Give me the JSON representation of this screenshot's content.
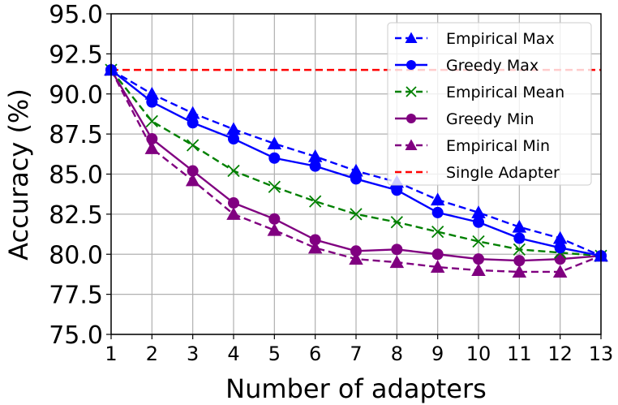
{
  "chart_data": {
    "type": "line",
    "title": "",
    "xlabel": "Number of adapters",
    "ylabel": "Accuracy (%)",
    "x": [
      1,
      2,
      3,
      4,
      5,
      6,
      7,
      8,
      9,
      10,
      11,
      12,
      13
    ],
    "xlim": [
      1,
      13
    ],
    "ylim": [
      75.0,
      95.0
    ],
    "xticks": [
      "1",
      "2",
      "3",
      "4",
      "5",
      "6",
      "7",
      "8",
      "9",
      "10",
      "11",
      "12",
      "13"
    ],
    "yticks": [
      "75.0",
      "77.5",
      "80.0",
      "82.5",
      "85.0",
      "87.5",
      "90.0",
      "92.5",
      "95.0"
    ],
    "grid": true,
    "legend_position": "upper right",
    "series": [
      {
        "name": "Empirical Max",
        "color": "#0000ff",
        "linestyle": "dashed",
        "marker": "triangle",
        "values": [
          91.5,
          90.0,
          88.8,
          87.8,
          86.9,
          86.1,
          85.2,
          84.5,
          83.4,
          82.6,
          81.7,
          81.0,
          79.9
        ]
      },
      {
        "name": "Greedy Max",
        "color": "#0000ff",
        "linestyle": "solid",
        "marker": "circle",
        "values": [
          91.5,
          89.5,
          88.2,
          87.2,
          86.0,
          85.5,
          84.7,
          84.0,
          82.6,
          82.0,
          81.0,
          80.4,
          79.9
        ]
      },
      {
        "name": "Empirical Mean",
        "color": "#008000",
        "linestyle": "dashed",
        "marker": "x",
        "values": [
          91.5,
          88.3,
          86.8,
          85.2,
          84.2,
          83.3,
          82.5,
          82.0,
          81.4,
          80.8,
          80.3,
          80.1,
          79.9
        ]
      },
      {
        "name": "Greedy Min",
        "color": "#800080",
        "linestyle": "solid",
        "marker": "circle",
        "values": [
          91.5,
          87.2,
          85.2,
          83.2,
          82.2,
          80.9,
          80.2,
          80.3,
          80.0,
          79.7,
          79.6,
          79.7,
          79.9
        ]
      },
      {
        "name": "Empirical Min",
        "color": "#800080",
        "linestyle": "dashed",
        "marker": "triangle",
        "values": [
          91.5,
          86.6,
          84.6,
          82.5,
          81.5,
          80.4,
          79.7,
          79.5,
          79.2,
          79.0,
          78.9,
          78.9,
          79.9
        ]
      },
      {
        "name": "Single Adapter",
        "color": "#ff0000",
        "linestyle": "dashed",
        "marker": "none",
        "values": [
          91.5,
          91.5,
          91.5,
          91.5,
          91.5,
          91.5,
          91.5,
          91.5,
          91.5,
          91.5,
          91.5,
          91.5,
          91.5
        ]
      }
    ]
  }
}
